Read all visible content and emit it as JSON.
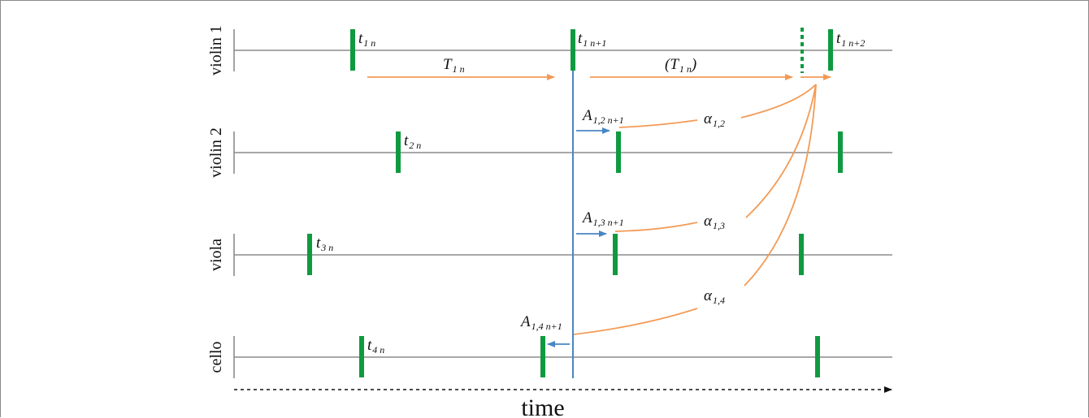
{
  "tracks": [
    {
      "id": "violin1",
      "name": "violin 1"
    },
    {
      "id": "violin2",
      "name": "violin 2"
    },
    {
      "id": "viola",
      "name": "viola"
    },
    {
      "id": "cello",
      "name": "cello"
    }
  ],
  "axis": {
    "label": "time"
  },
  "labels": {
    "t1n": {
      "main": "t",
      "sub": "1 n"
    },
    "t1n1": {
      "main": "t",
      "sub": "1 n+1"
    },
    "t1n2": {
      "main": "t",
      "sub": "1 n+2"
    },
    "t2n": {
      "main": "t",
      "sub": "2 n"
    },
    "t3n": {
      "main": "t",
      "sub": "3 n"
    },
    "t4n": {
      "main": "t",
      "sub": "4 n"
    },
    "T1n": {
      "main": "T",
      "sub": "1 n"
    },
    "T1n_paren": {
      "pre": "(T",
      "sub": "1 n",
      "post": ")"
    },
    "A12": {
      "main": "A",
      "sub": "1,2 n+1"
    },
    "A13": {
      "main": "A",
      "sub": "1,3 n+1"
    },
    "A14": {
      "main": "A",
      "sub": "1,4 n+1"
    },
    "alpha12": {
      "main": "α",
      "sub": "1,2"
    },
    "alpha13": {
      "main": "α",
      "sub": "1,3"
    },
    "alpha14": {
      "main": "α",
      "sub": "1,4"
    }
  },
  "colors": {
    "onset": "#0f9a40",
    "period_arrow": "#f39a55",
    "async_arrow": "#4a86c6",
    "track_line": "#8c8c8c",
    "reference_line": "#4a86c6"
  }
}
